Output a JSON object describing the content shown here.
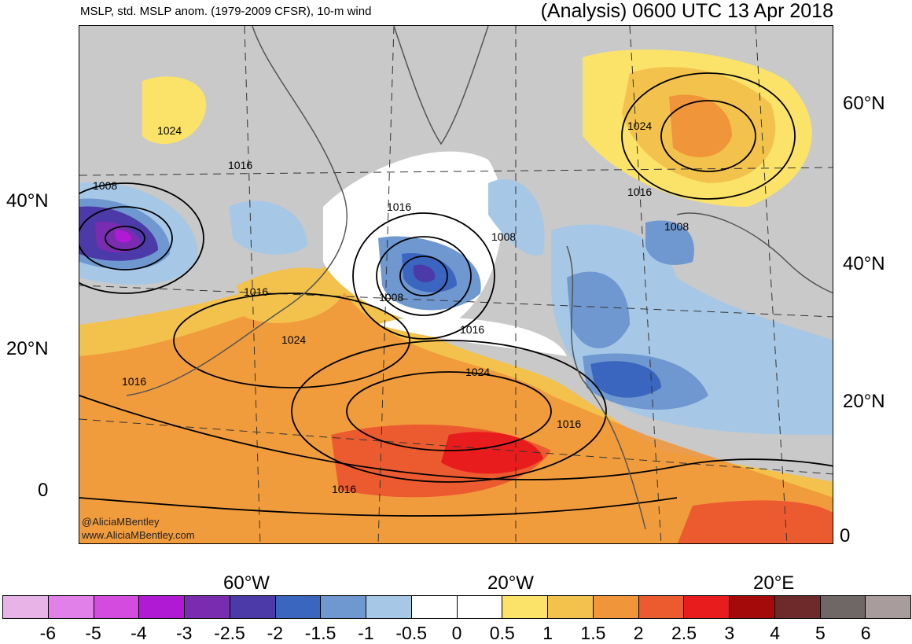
{
  "header": {
    "left_title": "MSLP, std. MSLP anom. (1979-2009 CFSR), 10-m wind",
    "right_title": "(Analysis) 0600 UTC 13 Apr 2018"
  },
  "axes": {
    "lat_left": [
      "40°N",
      "20°N",
      "0"
    ],
    "lat_right": [
      "60°N",
      "40°N",
      "20°N",
      "0"
    ],
    "lon_bottom": [
      "60°W",
      "20°W",
      "20°E"
    ]
  },
  "contour_labels": [
    "1024",
    "1016",
    "1008",
    "1016",
    "1016",
    "1008",
    "1024",
    "1016",
    "1024",
    "1016",
    "1008",
    "1024",
    "1016",
    "1016",
    "1016",
    "1008"
  ],
  "credits": [
    "@AliciaMBentley",
    "www.AliciaMBentley.com"
  ],
  "colorbar": {
    "colors": [
      "#e8b4e8",
      "#e080e8",
      "#d44be0",
      "#b01ad4",
      "#7a2cb0",
      "#4b3aa8",
      "#3a66c0",
      "#6f98d0",
      "#a6c8e6",
      "#ffffff",
      "#ffffff",
      "#fbe36a",
      "#f3c24c",
      "#f0953a",
      "#ec5b30",
      "#e81c1c",
      "#a40a0a",
      "#6e2a2a",
      "#6f6666",
      "#a89c9c"
    ],
    "labels": [
      "-6",
      "-5",
      "-4",
      "-3",
      "-2.5",
      "-2",
      "-1.5",
      "-1",
      "-0.5",
      "0",
      "0.5",
      "1",
      "1.5",
      "2",
      "2.5",
      "3",
      "4",
      "5",
      "6"
    ]
  }
}
